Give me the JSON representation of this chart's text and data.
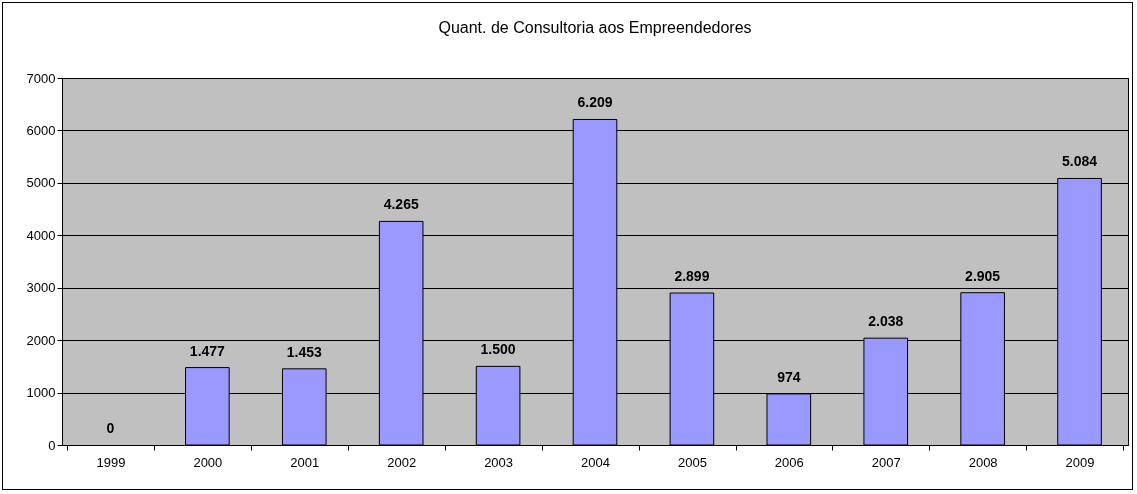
{
  "chart_data": {
    "type": "bar",
    "title": "Quant. de Consultoria aos Empreendedores",
    "categories": [
      "1999",
      "2000",
      "2001",
      "2002",
      "2003",
      "2004",
      "2005",
      "2006",
      "2007",
      "2008",
      "2009"
    ],
    "values": [
      0,
      1477,
      1453,
      4265,
      1500,
      6209,
      2899,
      974,
      2038,
      2905,
      5084
    ],
    "value_labels": [
      "0",
      "1.477",
      "1.453",
      "4.265",
      "1.500",
      "6.209",
      "2.899",
      "974",
      "2.038",
      "2.905",
      "5.084"
    ],
    "color": "#9999ff",
    "ylim": [
      0,
      7000
    ],
    "yticks": [
      0,
      1000,
      2000,
      3000,
      4000,
      5000,
      6000,
      7000
    ],
    "grid": "y"
  }
}
